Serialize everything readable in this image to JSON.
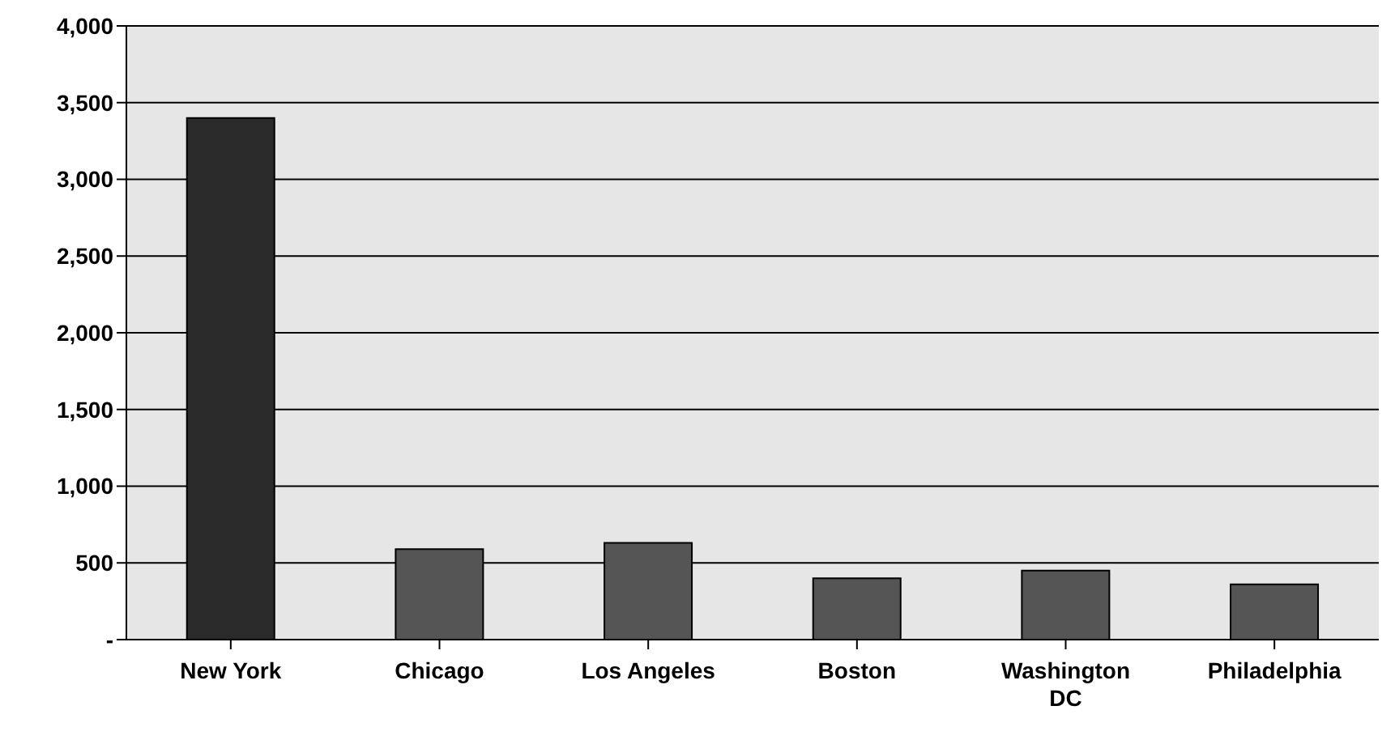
{
  "chart_data": {
    "type": "bar",
    "categories": [
      "New York",
      "Chicago",
      "Los Angeles",
      "Boston",
      "Washington DC",
      "Philadelphia"
    ],
    "values": [
      3400,
      590,
      630,
      400,
      450,
      360
    ],
    "colors": [
      "#2a2a2a",
      "#555555",
      "#555555",
      "#555555",
      "#555555",
      "#555555"
    ],
    "ylim": [
      0,
      4000
    ],
    "yticks": [
      {
        "value": 0,
        "label": "-"
      },
      500,
      {
        "value": 1000,
        "label": "1,000"
      },
      {
        "value": 1500,
        "label": "1,500"
      },
      {
        "value": 2000,
        "label": "2,000"
      },
      {
        "value": 2500,
        "label": "2,500"
      },
      {
        "value": 3000,
        "label": "3,000"
      },
      {
        "value": 3500,
        "label": "3,500"
      },
      {
        "value": 4000,
        "label": "4,000"
      }
    ],
    "grid": "y"
  }
}
